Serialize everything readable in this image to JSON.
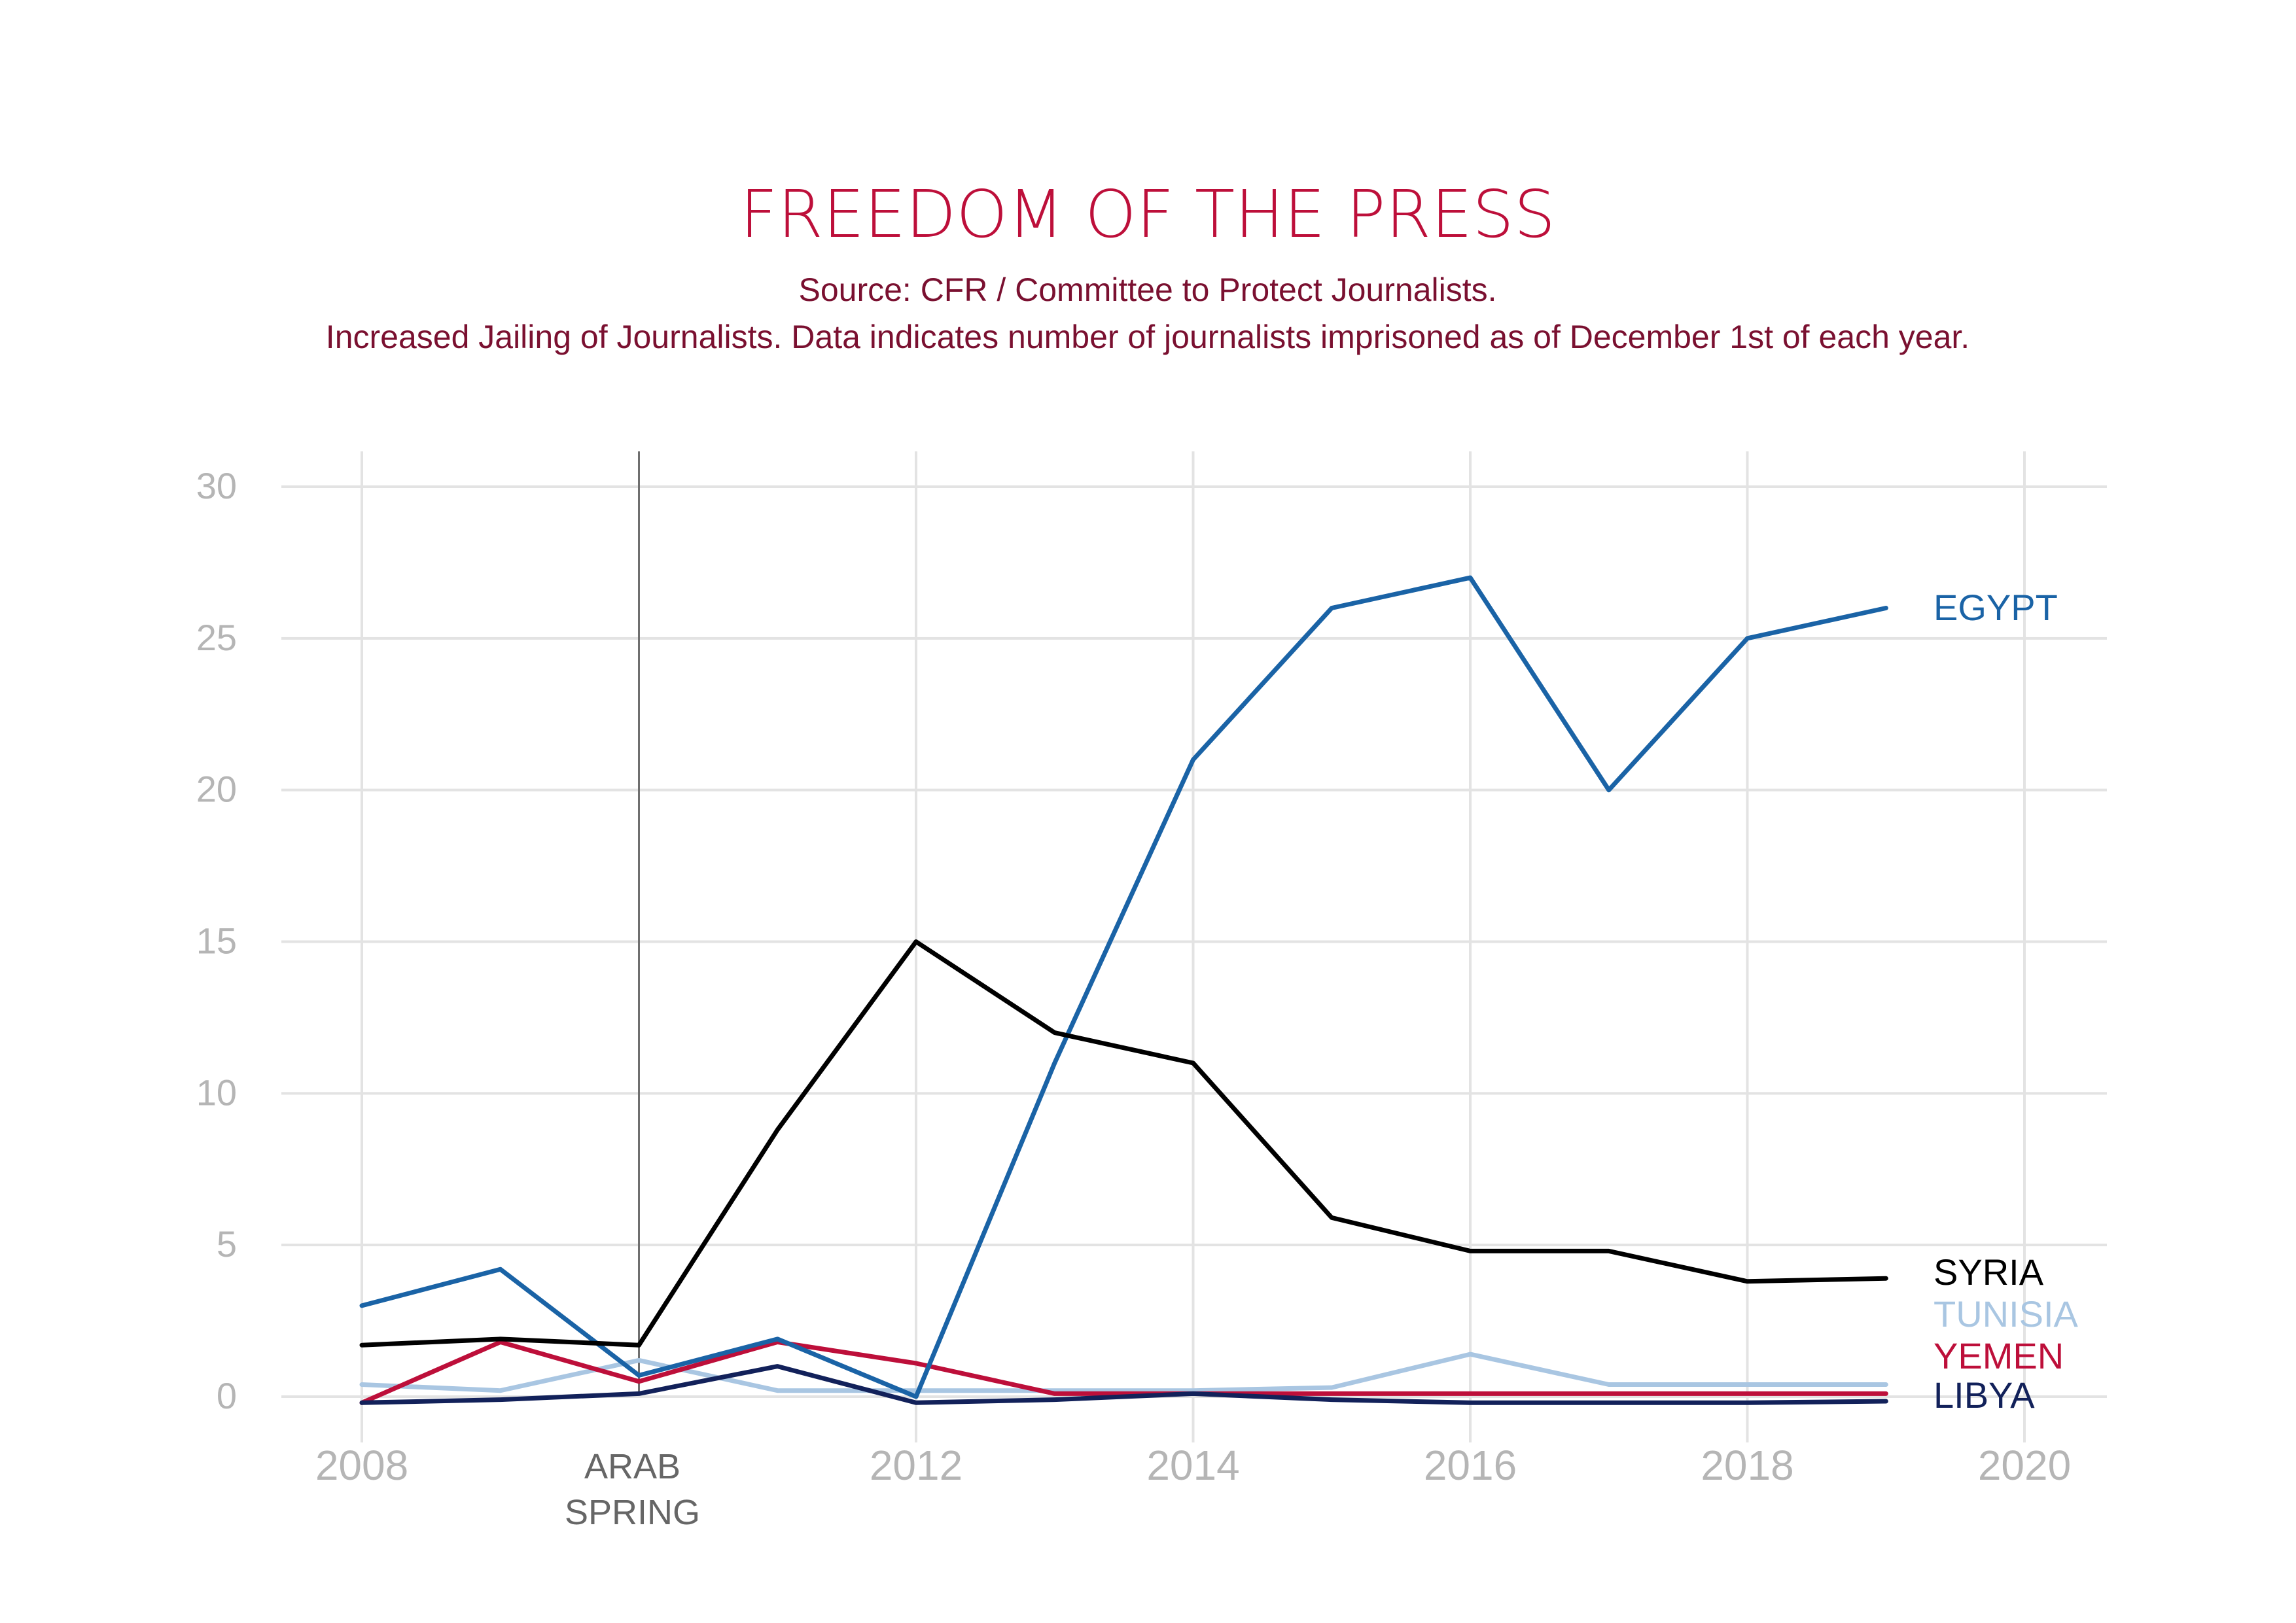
{
  "chart_data": {
    "type": "line",
    "title": "FREEDOM OF THE PRESS",
    "subtitle_lines": [
      "Source: CFR / Committee to Protect Journalists.",
      "Increased Jailing of Journalists. Data indicates number of journalists imprisoned as of December 1st of each year."
    ],
    "xlabel": "",
    "ylabel": "",
    "xlim": [
      2007.5,
      2020.5
    ],
    "ylim": [
      0,
      30
    ],
    "grid": true,
    "x_ticks": [
      {
        "value": 2008,
        "label": "2008"
      },
      {
        "value": 2012,
        "label": "2012"
      },
      {
        "value": 2014,
        "label": "2014"
      },
      {
        "value": 2016,
        "label": "2016"
      },
      {
        "value": 2018,
        "label": "2018"
      },
      {
        "value": 2020,
        "label": "2020"
      }
    ],
    "y_ticks": [
      0,
      5,
      10,
      15,
      20,
      25,
      30
    ],
    "x": [
      2008,
      2009,
      2010,
      2011,
      2012,
      2013,
      2014,
      2015,
      2016,
      2017,
      2018,
      2019
    ],
    "series": [
      {
        "name": "EGYPT",
        "color": "#1a63a6",
        "values": [
          3,
          4.2,
          0.7,
          1.9,
          0,
          11,
          21,
          26,
          27,
          20,
          25,
          26
        ]
      },
      {
        "name": "SYRIA",
        "color": "#000000",
        "values": [
          1.7,
          1.9,
          1.7,
          8.8,
          15,
          12,
          11,
          5.9,
          4.8,
          4.8,
          3.8,
          3.9
        ]
      },
      {
        "name": "TUNISIA",
        "color": "#a9c6e2",
        "values": [
          0.4,
          0.2,
          1.2,
          0.2,
          0.2,
          0.2,
          0.2,
          0.3,
          1.4,
          0.4,
          0.4,
          0.4
        ]
      },
      {
        "name": "YEMEN",
        "color": "#bd0f3a",
        "values": [
          -0.2,
          1.8,
          0.5,
          1.8,
          1.1,
          0.1,
          0.1,
          0.1,
          0.1,
          0.1,
          0.1,
          0.1
        ]
      },
      {
        "name": "LIBYA",
        "color": "#12215a",
        "values": [
          -0.2,
          -0.1,
          0.1,
          1.0,
          -0.2,
          -0.1,
          0.1,
          -0.1,
          -0.2,
          -0.2,
          -0.2,
          -0.15
        ]
      }
    ],
    "annotations": [
      {
        "x": 2010,
        "label_lines": [
          "ARAB",
          "SPRING"
        ],
        "color": "#666666"
      }
    ],
    "colors": {
      "title": "#bd0f3a",
      "subtitle": "#7a1030",
      "grid": "#e3e3e3",
      "tick": "#b5b5b5"
    }
  }
}
